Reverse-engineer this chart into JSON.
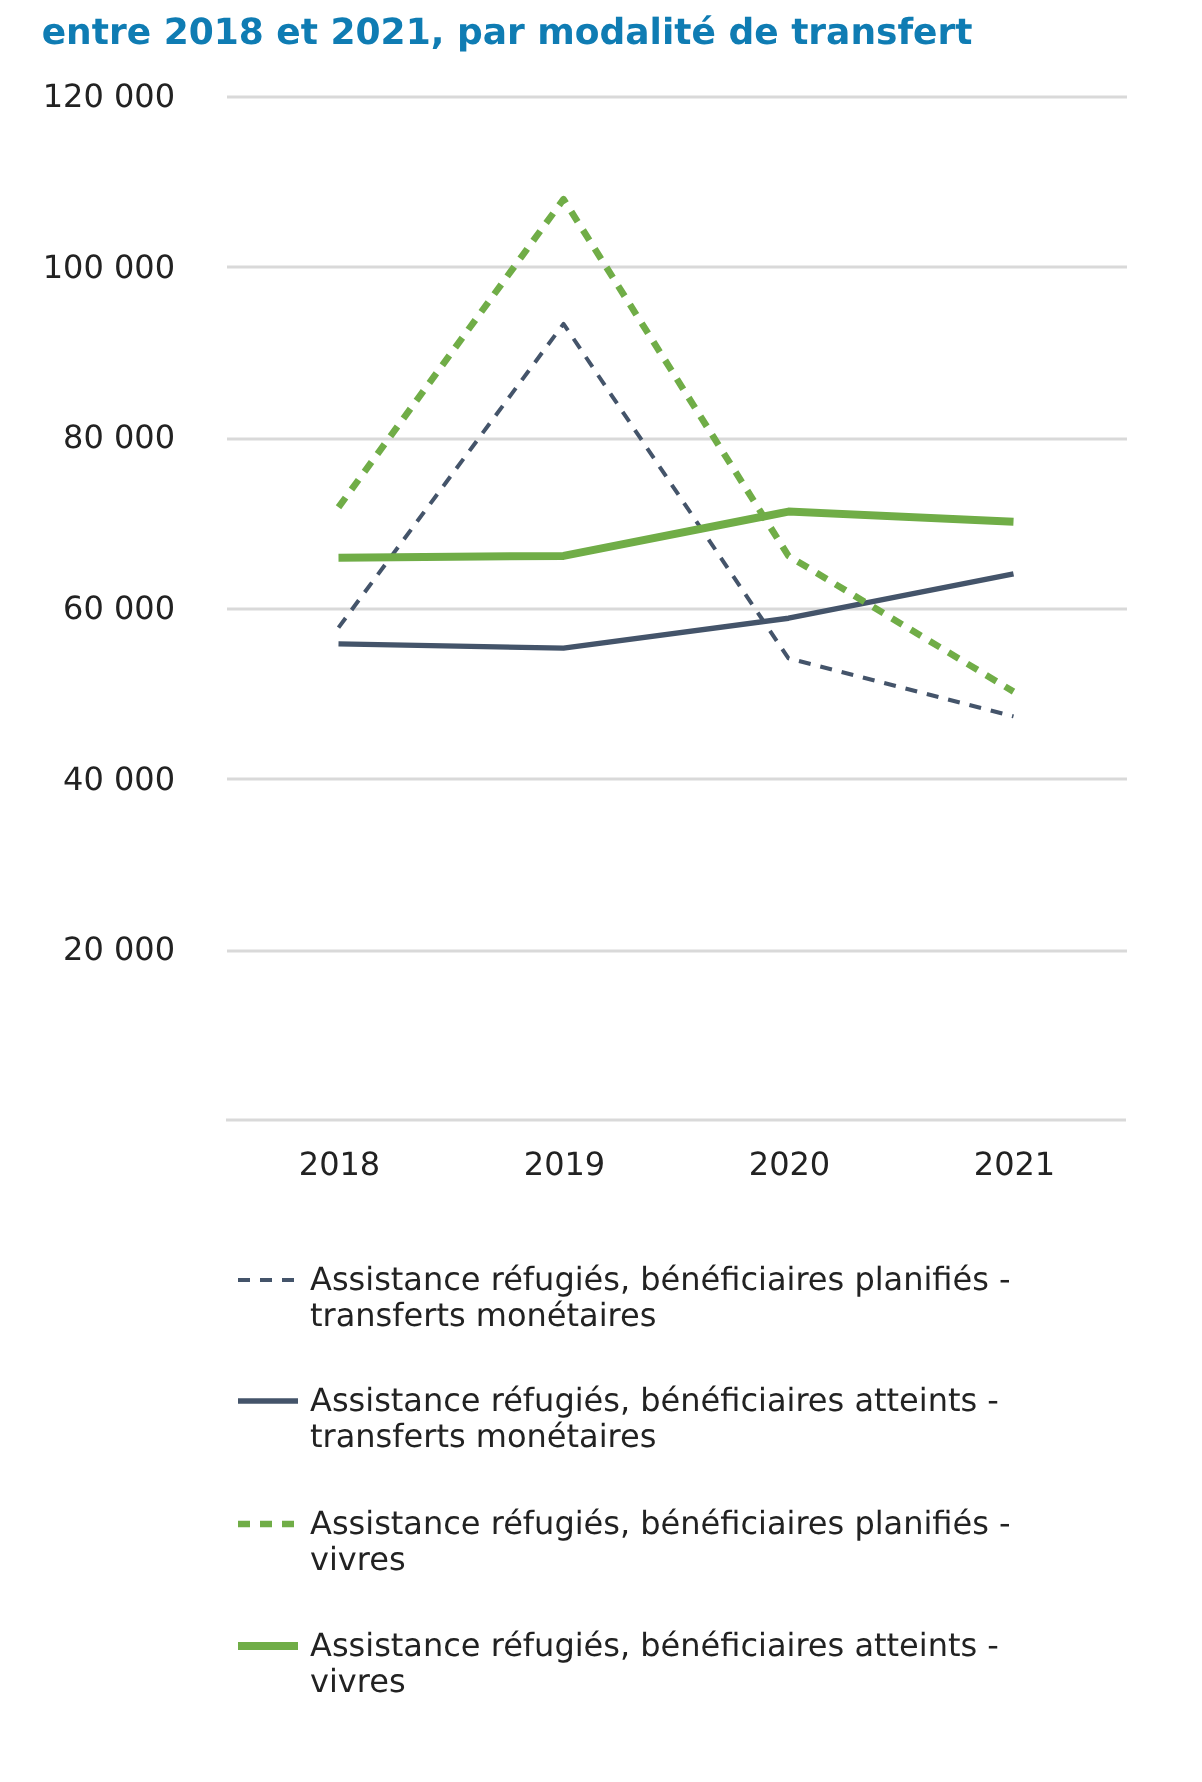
{
  "chart_data": {
    "type": "line",
    "title": "entre 2018  et 2021, par modalité de transfert",
    "categories": [
      "2018",
      "2019",
      "2020",
      "2021"
    ],
    "series": [
      {
        "name": "Assistance réfugiés, bénéficiaires planifiés - transferts monétaires",
        "color": "#44546a",
        "line_style": "dashed",
        "values": [
          57700,
          93300,
          54100,
          47300
        ]
      },
      {
        "name": "Assistance réfugiés, bénéficiaires atteints - transferts monétaires",
        "color": "#44546a",
        "line_style": "solid",
        "values": [
          55800,
          55300,
          58800,
          64000
        ]
      },
      {
        "name": "Assistance réfugiés, bénéficiaires planifiés - vivres",
        "color": "#70ad47",
        "line_style": "dashed",
        "values": [
          71800,
          107900,
          66100,
          50200
        ]
      },
      {
        "name": "Assistance réfugiés, bénéficiaires atteints - vivres",
        "color": "#70ad47",
        "line_style": "solid",
        "values": [
          65900,
          66100,
          71300,
          70100
        ]
      }
    ],
    "ylim": [
      0,
      120000
    ],
    "yticks": [
      {
        "value": 20000,
        "label": "20 000"
      },
      {
        "value": 40000,
        "label": "40 000"
      },
      {
        "value": 60000,
        "label": "60 000"
      },
      {
        "value": 80000,
        "label": "80 000"
      },
      {
        "value": 100000,
        "label": "100 000"
      },
      {
        "value": 120000,
        "label": "120 000"
      }
    ],
    "grid": "y",
    "legend": "bottom",
    "marker": "none"
  }
}
